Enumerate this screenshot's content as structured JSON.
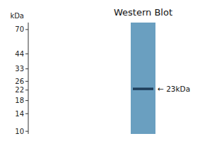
{
  "chart_data": {
    "type": "blot",
    "title": "Western Blot",
    "ylabel": "kDa",
    "categories": [
      null
    ],
    "series": [
      {
        "color": "#1e3d5a",
        "values": [
          22.5
        ]
      }
    ],
    "color": "#6a9fc0",
    "log": "y",
    "ylim": [
      9.5,
      80
    ],
    "yticks": [
      70,
      44,
      33,
      26,
      22,
      18,
      14,
      10
    ],
    "annotations": [
      {
        "text": "← 23kDa",
        "y": 22.5
      }
    ]
  }
}
